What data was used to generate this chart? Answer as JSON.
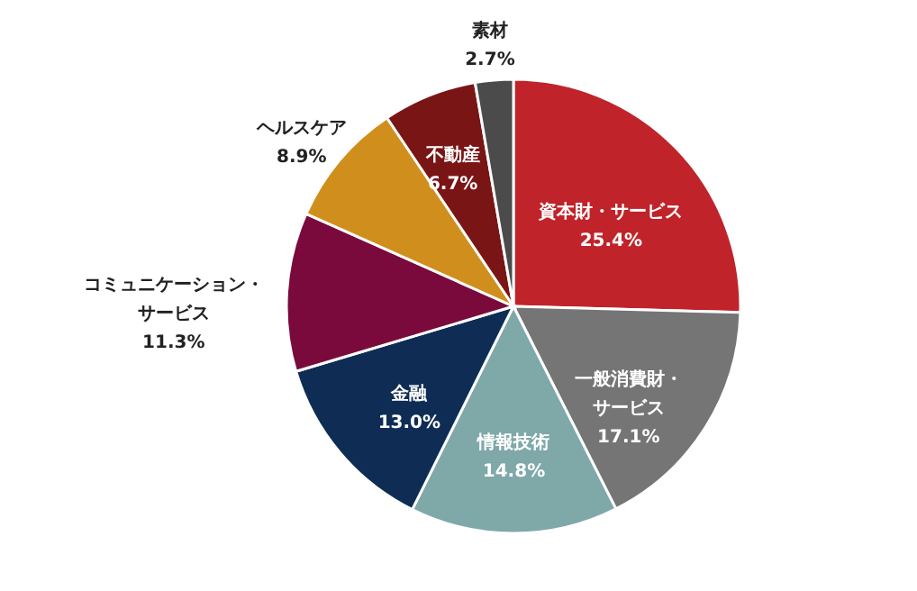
{
  "chart_data": {
    "type": "pie",
    "categories": [
      "資本財・サービス",
      "一般消費財・サービス",
      "情報技術",
      "金融",
      "コミュニケーション・サービス",
      "ヘルスケア",
      "不動産",
      "素材"
    ],
    "values": [
      25.4,
      17.1,
      14.8,
      13.0,
      11.3,
      8.9,
      6.7,
      2.7
    ],
    "value_labels": [
      "25.4%",
      "17.1%",
      "14.8%",
      "13.0%",
      "11.3%",
      "8.9%",
      "6.7%",
      "2.7%"
    ],
    "colors": [
      "#c0232a",
      "#757575",
      "#7fa8a9",
      "#0f2d54",
      "#7b0a3c",
      "#d08f1c",
      "#7a1516",
      "#4b4b4b"
    ]
  }
}
